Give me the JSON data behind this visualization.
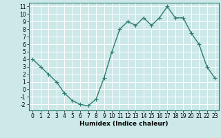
{
  "x": [
    0,
    1,
    2,
    3,
    4,
    5,
    6,
    7,
    8,
    9,
    10,
    11,
    12,
    13,
    14,
    15,
    16,
    17,
    18,
    19,
    20,
    21,
    22,
    23
  ],
  "y": [
    4.0,
    3.0,
    2.0,
    1.0,
    -0.5,
    -1.5,
    -2.0,
    -2.2,
    -1.3,
    1.5,
    5.0,
    8.0,
    9.0,
    8.5,
    9.5,
    8.5,
    9.5,
    11.0,
    9.5,
    9.5,
    7.5,
    6.0,
    3.0,
    1.5
  ],
  "xlabel": "Humidex (Indice chaleur)",
  "xlim": [
    -0.5,
    23.5
  ],
  "ylim": [
    -2.8,
    11.5
  ],
  "yticks": [
    -2,
    -1,
    0,
    1,
    2,
    3,
    4,
    5,
    6,
    7,
    8,
    9,
    10,
    11
  ],
  "xticks": [
    0,
    1,
    2,
    3,
    4,
    5,
    6,
    7,
    8,
    9,
    10,
    11,
    12,
    13,
    14,
    15,
    16,
    17,
    18,
    19,
    20,
    21,
    22,
    23
  ],
  "line_color": "#2e7d6e",
  "bg_color": "#cce8e8",
  "grid_color": "#ffffff",
  "marker": "+",
  "marker_size": 4,
  "line_width": 1.0,
  "tick_fontsize": 5.5,
  "xlabel_fontsize": 6.5
}
